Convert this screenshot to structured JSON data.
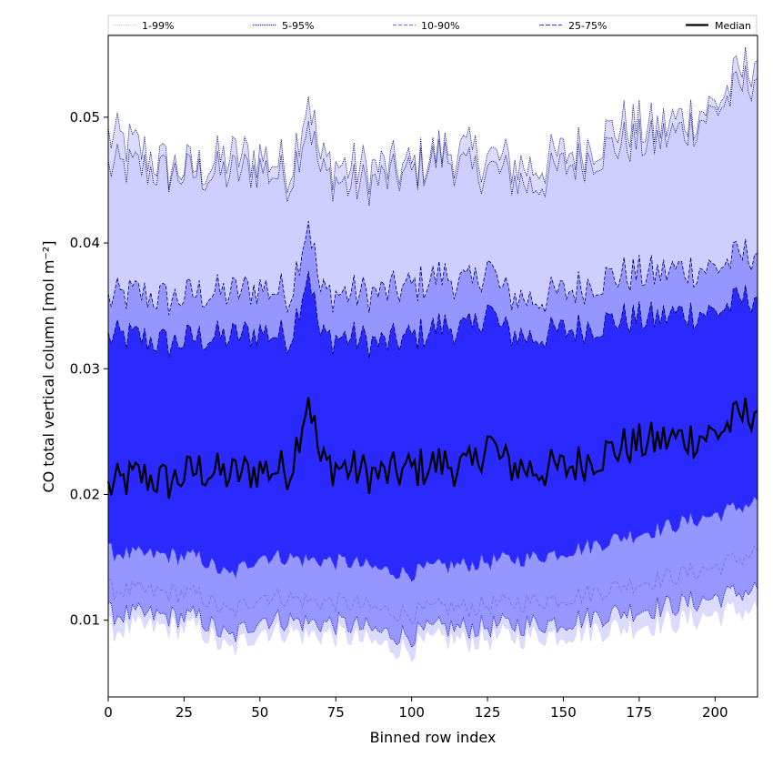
{
  "chart_data": {
    "type": "area",
    "xlabel": "Binned row index",
    "ylabel": "CO total vertical column [mol m⁻²]",
    "xlim": [
      0,
      214
    ],
    "ylim": [
      0.0039,
      0.0565
    ],
    "xticks": [
      0,
      25,
      50,
      75,
      100,
      125,
      150,
      175,
      200
    ],
    "yticks": [
      0.01,
      0.02,
      0.03,
      0.04,
      0.05
    ],
    "ytick_labels": [
      "0.01",
      "0.02",
      "0.03",
      "0.04",
      "0.05"
    ],
    "grid": false,
    "legend": {
      "placement": "top",
      "entries": [
        {
          "label": "1-99%",
          "line_color": "#c8c8ff",
          "dash": "1 1"
        },
        {
          "label": "5-95%",
          "line_color": "#0000cc",
          "dash": "1 1"
        },
        {
          "label": "10-90%",
          "line_color": "#6a6aff",
          "dash": "4 2"
        },
        {
          "label": "25-75%",
          "line_color": "#3333ff",
          "dash": "5 2"
        },
        {
          "label": "Median",
          "line_color": "#000000",
          "dash": ""
        }
      ]
    },
    "band_fill_colors": {
      "b5_95": "#cfcfff",
      "b10_90": "#9696ff",
      "b25_75": "#2a2aff"
    },
    "x_anchors": [
      0,
      10,
      20,
      30,
      40,
      50,
      60,
      66,
      70,
      80,
      90,
      100,
      110,
      120,
      125,
      130,
      140,
      150,
      160,
      170,
      180,
      190,
      200,
      214
    ],
    "series": [
      {
        "name": "1-99%",
        "upper": [
          0.0485,
          0.0475,
          0.046,
          0.046,
          0.0468,
          0.047,
          0.046,
          0.052,
          0.0465,
          0.046,
          0.046,
          0.046,
          0.0475,
          0.047,
          0.047,
          0.0465,
          0.046,
          0.047,
          0.048,
          0.0495,
          0.049,
          0.05,
          0.051,
          0.055
        ],
        "lower": [
          0.0093,
          0.0094,
          0.0095,
          0.0094,
          0.0075,
          0.0093,
          0.0092,
          0.0088,
          0.009,
          0.0087,
          0.008,
          0.0078,
          0.0085,
          0.0085,
          0.0086,
          0.0087,
          0.0088,
          0.009,
          0.0093,
          0.0095,
          0.0098,
          0.01,
          0.0105,
          0.011
        ]
      },
      {
        "name": "5-95%",
        "upper": [
          0.046,
          0.046,
          0.0455,
          0.0455,
          0.0455,
          0.046,
          0.045,
          0.05,
          0.0455,
          0.0445,
          0.045,
          0.0455,
          0.047,
          0.0455,
          0.046,
          0.0455,
          0.0445,
          0.046,
          0.047,
          0.048,
          0.048,
          0.049,
          0.0505,
          0.0535
        ],
        "lower": [
          0.0105,
          0.0104,
          0.0103,
          0.0102,
          0.0085,
          0.0102,
          0.01,
          0.0098,
          0.0098,
          0.0096,
          0.009,
          0.0088,
          0.0094,
          0.0094,
          0.0095,
          0.0096,
          0.0097,
          0.0099,
          0.0103,
          0.0107,
          0.011,
          0.0113,
          0.0118,
          0.0125
        ]
      },
      {
        "name": "10-90%",
        "upper": [
          0.0355,
          0.036,
          0.0355,
          0.036,
          0.036,
          0.0365,
          0.036,
          0.042,
          0.036,
          0.036,
          0.036,
          0.0365,
          0.0375,
          0.0365,
          0.0385,
          0.036,
          0.0355,
          0.036,
          0.037,
          0.0375,
          0.0375,
          0.038,
          0.038,
          0.0395
        ],
        "lower": [
          0.0125,
          0.0123,
          0.0122,
          0.012,
          0.0105,
          0.012,
          0.0118,
          0.0115,
          0.0115,
          0.0113,
          0.0108,
          0.0105,
          0.011,
          0.011,
          0.0112,
          0.0113,
          0.0115,
          0.0118,
          0.0122,
          0.0128,
          0.0132,
          0.0137,
          0.0142,
          0.0155
        ]
      },
      {
        "name": "25-75%",
        "upper": [
          0.0325,
          0.0325,
          0.032,
          0.0325,
          0.0325,
          0.033,
          0.0325,
          0.038,
          0.0325,
          0.0325,
          0.032,
          0.0325,
          0.0335,
          0.033,
          0.035,
          0.033,
          0.0325,
          0.033,
          0.0335,
          0.034,
          0.034,
          0.0345,
          0.0345,
          0.036
        ],
        "lower": [
          0.0155,
          0.0152,
          0.0152,
          0.015,
          0.0135,
          0.0152,
          0.015,
          0.0148,
          0.0148,
          0.0146,
          0.014,
          0.0138,
          0.0143,
          0.0145,
          0.0147,
          0.0148,
          0.015,
          0.0155,
          0.016,
          0.0167,
          0.0172,
          0.0178,
          0.0184,
          0.0195
        ]
      },
      {
        "name": "Median",
        "values": [
          0.0205,
          0.0215,
          0.021,
          0.022,
          0.0215,
          0.022,
          0.022,
          0.028,
          0.0225,
          0.022,
          0.0215,
          0.022,
          0.0225,
          0.022,
          0.0245,
          0.0225,
          0.022,
          0.022,
          0.023,
          0.0238,
          0.0242,
          0.0245,
          0.0248,
          0.027
        ]
      }
    ]
  }
}
